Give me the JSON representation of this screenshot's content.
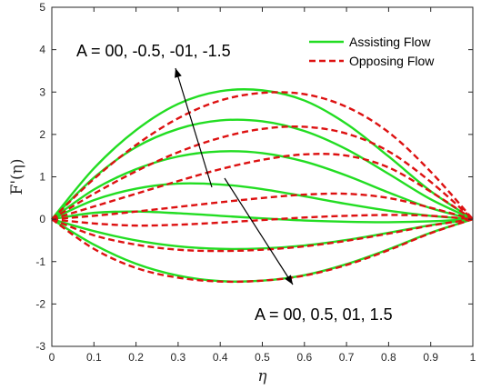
{
  "chart_data": {
    "type": "line",
    "xlabel": "η",
    "ylabel": "F'(η)",
    "xlim": [
      0,
      1
    ],
    "ylim": [
      -3,
      5
    ],
    "xticks": [
      0,
      0.1,
      0.2,
      0.3,
      0.4,
      0.5,
      0.6,
      0.7,
      0.8,
      0.9,
      1
    ],
    "yticks": [
      -3,
      -2,
      -1,
      0,
      1,
      2,
      3,
      4,
      5
    ],
    "grid": false,
    "legend_position": "top-right",
    "legend": [
      {
        "label": "Assisting Flow",
        "style": "solid",
        "color": "#22dd22"
      },
      {
        "label": "Opposing Flow",
        "style": "dashed",
        "color": "#dd1111"
      }
    ],
    "annotations": [
      {
        "text": "A = 00, -0.5, -01, -1.5"
      },
      {
        "text": "A = 00, 0.5, 01, 1.5"
      }
    ],
    "series": [
      {
        "group": "Assisting Flow",
        "A": "00",
        "x": [
          0,
          0.1,
          0.2,
          0.3,
          0.4,
          0.5,
          0.6,
          0.7,
          0.8,
          0.9,
          1.0
        ],
        "y": [
          0,
          0.15,
          0.18,
          0.14,
          0.08,
          0.02,
          -0.03,
          -0.06,
          -0.07,
          -0.05,
          0
        ]
      },
      {
        "group": "Assisting Flow",
        "A": "-0.5",
        "x": [
          0,
          0.1,
          0.2,
          0.3,
          0.4,
          0.5,
          0.6,
          0.7,
          0.8,
          0.9,
          1.0
        ],
        "y": [
          0,
          0.45,
          0.72,
          0.84,
          0.82,
          0.71,
          0.54,
          0.36,
          0.2,
          0.08,
          0
        ]
      },
      {
        "group": "Assisting Flow",
        "A": "-01",
        "x": [
          0,
          0.1,
          0.2,
          0.3,
          0.4,
          0.5,
          0.6,
          0.7,
          0.8,
          0.9,
          1.0
        ],
        "y": [
          0,
          0.7,
          1.18,
          1.48,
          1.6,
          1.56,
          1.36,
          1.03,
          0.63,
          0.26,
          0
        ]
      },
      {
        "group": "Assisting Flow",
        "A": "-1.5",
        "x": [
          0,
          0.1,
          0.2,
          0.3,
          0.4,
          0.5,
          0.6,
          0.7,
          0.8,
          0.9,
          1.0
        ],
        "y": [
          0,
          0.98,
          1.7,
          2.13,
          2.33,
          2.31,
          2.08,
          1.65,
          1.07,
          0.47,
          0
        ]
      },
      {
        "group": "Assisting Flow",
        "A": "-1.5 (outer)",
        "x": [
          0,
          0.1,
          0.2,
          0.3,
          0.4,
          0.5,
          0.6,
          0.7,
          0.8,
          0.9,
          1.0
        ],
        "y": [
          0,
          1.2,
          2.1,
          2.72,
          3.02,
          3.04,
          2.8,
          2.25,
          1.48,
          0.66,
          0
        ]
      },
      {
        "group": "Assisting Flow",
        "A": "0.5",
        "x": [
          0,
          0.1,
          0.2,
          0.3,
          0.4,
          0.5,
          0.6,
          0.7,
          0.8,
          0.9,
          1.0
        ],
        "y": [
          0,
          -0.28,
          -0.5,
          -0.64,
          -0.7,
          -0.69,
          -0.62,
          -0.49,
          -0.32,
          -0.14,
          0
        ]
      },
      {
        "group": "Assisting Flow",
        "A": "01",
        "x": [
          0,
          0.1,
          0.2,
          0.3,
          0.4,
          0.5,
          0.6,
          0.7,
          0.8,
          0.9,
          1.0
        ],
        "y": [
          0,
          -0.6,
          -1.05,
          -1.33,
          -1.46,
          -1.45,
          -1.32,
          -1.06,
          -0.71,
          -0.32,
          0
        ]
      },
      {
        "group": "Opposing Flow",
        "A": "00",
        "x": [
          0,
          0.1,
          0.2,
          0.3,
          0.4,
          0.5,
          0.6,
          0.7,
          0.8,
          0.9,
          1.0
        ],
        "y": [
          0,
          -0.1,
          -0.15,
          -0.13,
          -0.08,
          -0.02,
          0.04,
          0.08,
          0.1,
          0.08,
          0
        ]
      },
      {
        "group": "Opposing Flow",
        "A": "-0.5",
        "x": [
          0,
          0.1,
          0.2,
          0.3,
          0.4,
          0.5,
          0.6,
          0.7,
          0.8,
          0.9,
          1.0
        ],
        "y": [
          0,
          0.08,
          0.18,
          0.29,
          0.4,
          0.5,
          0.58,
          0.6,
          0.5,
          0.27,
          0
        ]
      },
      {
        "group": "Opposing Flow",
        "A": "-01",
        "x": [
          0,
          0.1,
          0.2,
          0.3,
          0.4,
          0.5,
          0.6,
          0.7,
          0.8,
          0.9,
          1.0
        ],
        "y": [
          0,
          0.3,
          0.6,
          0.9,
          1.18,
          1.4,
          1.53,
          1.5,
          1.22,
          0.65,
          0
        ]
      },
      {
        "group": "Opposing Flow",
        "A": "-1.5",
        "x": [
          0,
          0.1,
          0.2,
          0.3,
          0.4,
          0.5,
          0.6,
          0.7,
          0.8,
          0.9,
          1.0
        ],
        "y": [
          0,
          0.6,
          1.13,
          1.58,
          1.92,
          2.13,
          2.18,
          2.02,
          1.6,
          0.88,
          0
        ]
      },
      {
        "group": "Opposing Flow",
        "A": "-1.5 (outer)",
        "x": [
          0,
          0.1,
          0.2,
          0.3,
          0.4,
          0.5,
          0.6,
          0.7,
          0.8,
          0.9,
          1.0
        ],
        "y": [
          0,
          0.95,
          1.75,
          2.38,
          2.8,
          2.98,
          2.95,
          2.65,
          2.05,
          1.12,
          0
        ]
      },
      {
        "group": "Opposing Flow",
        "A": "0.5",
        "x": [
          0,
          0.1,
          0.2,
          0.3,
          0.4,
          0.5,
          0.6,
          0.7,
          0.8,
          0.9,
          1.0
        ],
        "y": [
          0,
          -0.38,
          -0.6,
          -0.72,
          -0.75,
          -0.72,
          -0.64,
          -0.51,
          -0.34,
          -0.15,
          0
        ]
      },
      {
        "group": "Opposing Flow",
        "A": "01",
        "x": [
          0,
          0.1,
          0.2,
          0.3,
          0.4,
          0.5,
          0.6,
          0.7,
          0.8,
          0.9,
          1.0
        ],
        "y": [
          0,
          -0.7,
          -1.15,
          -1.38,
          -1.47,
          -1.45,
          -1.33,
          -1.08,
          -0.73,
          -0.33,
          0
        ]
      }
    ]
  }
}
